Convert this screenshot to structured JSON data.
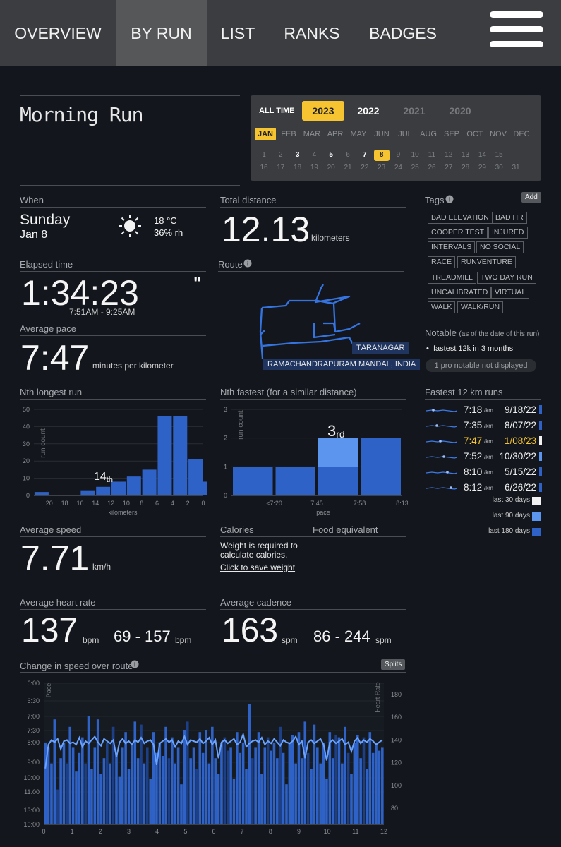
{
  "nav": {
    "tabs": [
      "OVERVIEW",
      "BY RUN",
      "LIST",
      "RANKS",
      "BADGES"
    ],
    "active": "BY RUN"
  },
  "run": {
    "title": "Morning Run"
  },
  "calendar": {
    "all_time": "ALL TIME",
    "years": [
      "2023",
      "2022",
      "2021",
      "2020"
    ],
    "selected_year": "2023",
    "months": [
      "JAN",
      "FEB",
      "MAR",
      "APR",
      "MAY",
      "JUN",
      "JUL",
      "AUG",
      "SEP",
      "OCT",
      "NOV",
      "DEC"
    ],
    "selected_month": "JAN",
    "days": [
      "1",
      "2",
      "3",
      "4",
      "5",
      "6",
      "7",
      "8",
      "9",
      "10",
      "11",
      "12",
      "13",
      "14",
      "15",
      "16",
      "17",
      "18",
      "19",
      "20",
      "21",
      "22",
      "23",
      "24",
      "25",
      "26",
      "27",
      "28",
      "29",
      "30",
      "31"
    ],
    "run_days": [
      "3",
      "5",
      "7",
      "8"
    ],
    "selected_day": "8"
  },
  "when": {
    "label": "When",
    "day": "Sunday",
    "date": "Jan 8",
    "temp": "18 °C",
    "humidity": "36% rh",
    "weather_icon": "sun-icon"
  },
  "distance": {
    "label": "Total distance",
    "value": "12.13",
    "unit": "kilometers"
  },
  "elapsed": {
    "label": "Elapsed time",
    "value": "1:34:23",
    "mark": "\"",
    "range": "7:51AM - 9:25AM"
  },
  "route": {
    "label": "Route",
    "place1": "TĀRĀNAGAR",
    "place2": "RAMACHANDRAPURAM MANDAL, INDIA"
  },
  "pace": {
    "label": "Average pace",
    "value": "7:47",
    "unit": "minutes per kilometer"
  },
  "tags": {
    "label": "Tags",
    "add": "Add",
    "items": [
      "BAD ELEVATION",
      "BAD HR",
      "COOPER TEST",
      "INJURED",
      "INTERVALS",
      "NO SOCIAL",
      "RACE",
      "RUNVENTURE",
      "TREADMILL",
      "TWO DAY RUN",
      "UNCALIBRATED",
      "VIRTUAL",
      "WALK",
      "WALK/RUN"
    ]
  },
  "notable": {
    "label": "Notable",
    "note": "(as of the date of this run)",
    "items": [
      "fastest 12k in 3 months"
    ],
    "pro": "1 pro notable not displayed"
  },
  "fastest": {
    "label": "Fastest 12 km runs",
    "unit": "/km",
    "rows": [
      {
        "pace": "7:18",
        "date": "9/18/22",
        "period": "last 180 days",
        "current": false
      },
      {
        "pace": "7:35",
        "date": "8/07/22",
        "period": "last 180 days",
        "current": false
      },
      {
        "pace": "7:47",
        "date": "1/08/23",
        "period": "last 30 days",
        "current": true
      },
      {
        "pace": "7:52",
        "date": "10/30/22",
        "period": "last 90 days",
        "current": false
      },
      {
        "pace": "8:10",
        "date": "5/15/22",
        "period": "last 180 days",
        "current": false
      },
      {
        "pace": "8:12",
        "date": "6/26/22",
        "period": "last 180 days",
        "current": false
      }
    ],
    "legend": [
      {
        "label": "last 30 days",
        "color": "#f2f2f2"
      },
      {
        "label": "last 90 days",
        "color": "#5b95ee"
      },
      {
        "label": "last 180 days",
        "color": "#2f62c6"
      }
    ]
  },
  "speed": {
    "label": "Average speed",
    "value": "7.71",
    "unit": "km/h"
  },
  "calories": {
    "label": "Calories",
    "food_label": "Food equivalent",
    "message": "Weight is required to calculate calories.",
    "link": "Click to save weight"
  },
  "heart": {
    "label": "Average heart rate",
    "value": "137",
    "unit": "bpm",
    "range": "69 - 157",
    "range_unit": "bpm"
  },
  "cadence": {
    "label": "Average cadence",
    "value": "163",
    "unit": "spm",
    "range": "86 - 244",
    "range_unit": "spm"
  },
  "colors": {
    "accent": "#f6c431",
    "bar": "#2f62c6",
    "bar_light": "#5b95ee",
    "bg": "#13171d"
  },
  "chart_data": [
    {
      "type": "bar",
      "title": "Nth longest run",
      "xlabel": "kilometers",
      "ylabel": "run count",
      "categories": [
        "22",
        "21",
        "20",
        "19",
        "18",
        "17",
        "16",
        "15",
        "14",
        "13",
        "12",
        "11",
        "10",
        "9",
        "8",
        "7",
        "6",
        "5",
        "4",
        "3",
        "2",
        "1"
      ],
      "values": [
        2,
        0,
        0,
        3,
        5,
        8,
        11,
        15,
        46,
        46,
        21,
        8
      ],
      "x": [
        21,
        19,
        17,
        15,
        13,
        11,
        9,
        7,
        5,
        3,
        1,
        0
      ],
      "x_ticks": [
        "20",
        "18",
        "16",
        "14",
        "12",
        "10",
        "8",
        "6",
        "4",
        "2",
        "0"
      ],
      "y_ticks": [
        "0",
        "10",
        "20",
        "30",
        "40",
        "50"
      ],
      "ylim": [
        0,
        50
      ],
      "annotation": {
        "text": "14",
        "suffix": "th"
      }
    },
    {
      "type": "bar",
      "title": "Nth fastest (for a similar distance)",
      "xlabel": "pace",
      "ylabel": "run count",
      "x_ticks": [
        "<7:20",
        "7:45",
        "7:58",
        "8:13"
      ],
      "y_ticks": [
        "0",
        "1",
        "2",
        "3"
      ],
      "ylim": [
        0,
        3
      ],
      "series": [
        {
          "name": "last 180 days",
          "values": [
            1,
            1,
            1,
            2
          ]
        },
        {
          "name": "last 90 days",
          "values": [
            0,
            0,
            1,
            0
          ]
        }
      ],
      "annotation": {
        "text": "3",
        "suffix": "rd"
      }
    },
    {
      "type": "bar",
      "title": "Change in speed over route",
      "button": "Splits",
      "xlabel": "km",
      "ylabel_left": "Pace",
      "ylabel_right": "Heart Rate",
      "x_ticks": [
        "0",
        "1",
        "2",
        "3",
        "4",
        "5",
        "6",
        "7",
        "8",
        "9",
        "10",
        "11",
        "12"
      ],
      "y_ticks_left": [
        "6:00",
        "6:30",
        "7:00",
        "7:30",
        "8:00",
        "9:00",
        "10:00",
        "11:00",
        "13:00",
        "15:00"
      ],
      "y_ticks_right": [
        "80",
        "100",
        "120",
        "140",
        "160",
        "180"
      ],
      "series": [
        {
          "name": "Pace",
          "values": [
            7.5,
            7.6,
            7.9,
            7.3,
            8.4,
            7.8,
            7.5,
            7.9,
            7.2,
            7.6,
            8.3,
            7.7,
            7.4,
            7.9,
            7.0,
            8.0,
            7.6,
            7.3,
            8.1,
            7.8,
            7.5,
            7.9,
            7.2,
            7.7,
            8.4,
            7.6,
            7.3,
            8.0,
            7.5,
            7.1,
            7.8,
            7.4,
            7.9,
            7.6,
            8.2,
            7.3,
            7.7,
            7.5,
            8.0,
            7.2,
            7.8,
            7.4,
            7.9,
            7.6,
            8.3,
            7.5,
            7.1,
            7.8,
            7.6,
            8.0,
            7.3,
            7.7,
            7.5,
            7.9,
            7.2,
            7.8,
            8.1,
            7.5,
            7.4,
            7.9,
            7.6,
            8.2,
            7.3,
            7.7,
            7.5,
            8.0,
            7.0,
            7.8,
            7.6,
            7.3,
            8.1,
            7.6,
            7.4,
            7.9,
            7.5,
            7.8,
            7.2,
            7.7,
            8.3,
            7.5,
            7.6,
            7.9,
            7.3,
            7.8,
            7.1,
            7.7,
            8.0,
            7.4,
            7.6,
            7.9,
            7.5,
            8.2,
            7.3,
            7.8,
            7.6,
            7.4,
            7.9,
            7.2,
            7.7,
            8.1,
            7.5,
            7.6,
            7.8,
            7.4,
            8.0,
            7.3,
            7.7,
            7.5,
            7.9,
            7.6
          ]
        },
        {
          "name": "Heart Rate",
          "values": [
            115,
            136,
            140,
            138,
            141,
            132,
            139,
            140,
            137,
            138,
            136,
            142,
            134,
            139,
            137,
            140,
            143,
            138,
            135,
            141,
            139,
            137,
            140,
            125,
            138,
            141,
            137,
            139,
            136,
            140,
            138,
            142,
            137,
            139,
            140,
            136,
            118,
            137,
            139,
            141,
            138,
            140,
            134,
            139,
            137,
            143,
            136,
            140,
            139,
            138,
            141,
            137,
            139,
            142,
            136,
            140,
            124,
            138,
            140,
            137,
            139,
            141,
            136,
            138,
            145,
            134,
            137,
            139,
            140,
            138,
            142,
            136,
            139,
            137,
            141,
            138,
            135,
            140,
            138,
            137,
            139,
            143,
            136,
            139,
            124,
            138,
            140,
            137,
            139,
            141,
            136,
            122,
            138,
            140,
            137,
            139,
            141,
            136,
            138,
            130,
            139,
            142,
            137,
            140,
            138,
            141,
            139,
            136,
            138,
            140
          ]
        }
      ]
    }
  ]
}
